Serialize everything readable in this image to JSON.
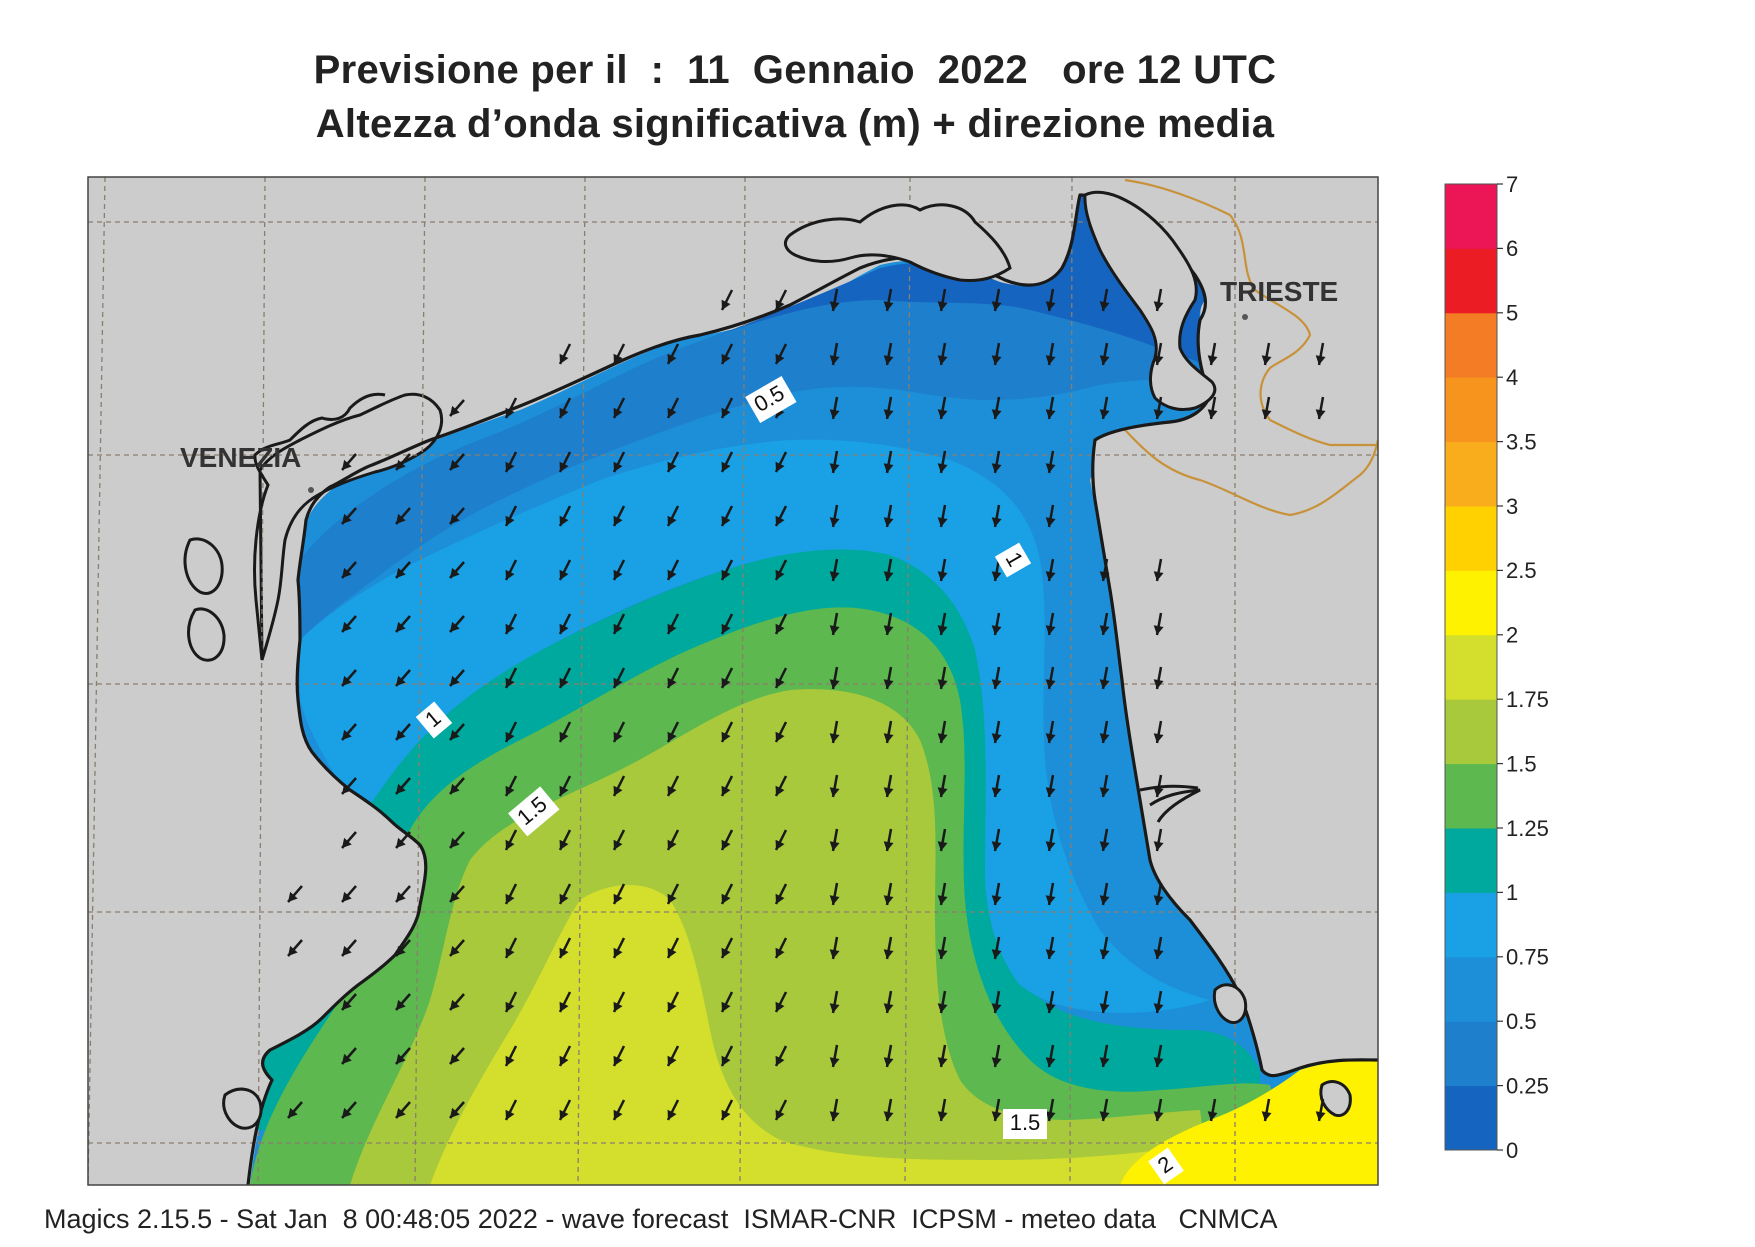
{
  "title": {
    "line1": "Previsione per il  :  11  Gennaio  2022   ore 12 UTC",
    "line2": "Altezza d’onda significativa (m) + direzione media"
  },
  "cities": [
    {
      "id": "venezia",
      "label": "VENEZIA"
    },
    {
      "id": "trieste",
      "label": "TRIESTE"
    }
  ],
  "contour_labels": [
    "0.5",
    "1",
    "1",
    "1.5",
    "1.5",
    "2"
  ],
  "colorbar": {
    "unit": "m",
    "levels": [
      "0",
      "0.25",
      "0.5",
      "0.75",
      "1",
      "1.25",
      "1.5",
      "1.75",
      "2",
      "2.5",
      "3",
      "3.5",
      "4",
      "5",
      "6",
      "7"
    ],
    "colors": [
      "#1565c0",
      "#1e7fcc",
      "#1d8fd8",
      "#1aa0e4",
      "#00a99d",
      "#5cb84f",
      "#a8c93c",
      "#d3df2c",
      "#fff200",
      "#ffd100",
      "#f9ad1d",
      "#f7941e",
      "#f47c25",
      "#ec1c24",
      "#ec1556"
    ]
  },
  "wave_direction": "toward SSW (from NNE)",
  "footer": "Magics 2.15.5 - Sat Jan  8 00:48:05 2022 - wave forecast  ISMAR-CNR  ICPSM - meteo data   CNMCA",
  "colors": {
    "land": "#cccccc",
    "coast": "#1a1a1a",
    "border": "#c8923a",
    "grid": "#8a7e6e",
    "arrow": "#1a1a1a"
  }
}
